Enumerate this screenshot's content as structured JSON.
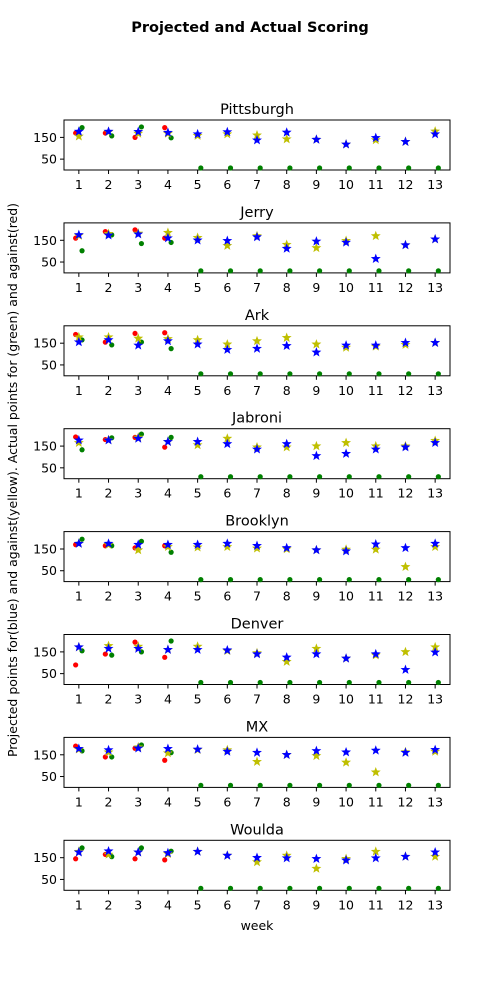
{
  "chart_data": {
    "type": "scatter",
    "title": "Projected and Actual Scoring",
    "xlabel": "week",
    "ylabel": "Projected points for(blue) and against(yellow). Actual points for (green) and against(red)",
    "x_ticks": [
      1,
      2,
      3,
      4,
      5,
      6,
      7,
      8,
      9,
      10,
      11,
      12,
      13
    ],
    "y_ticks": [
      150,
      50
    ],
    "ylim": [
      0,
      230
    ],
    "xlim": [
      0.5,
      13.5
    ],
    "series_styles": [
      {
        "key": "proj_for",
        "marker": "star",
        "color": "#0000ff"
      },
      {
        "key": "proj_against",
        "marker": "star",
        "color": "#bfbf00"
      },
      {
        "key": "act_for",
        "marker": "dot",
        "color": "#008000"
      },
      {
        "key": "act_against",
        "marker": "dot",
        "color": "#ff0000"
      }
    ],
    "panels": [
      {
        "name": "Pittsburgh",
        "proj_for": [
          177,
          177,
          176,
          172,
          165,
          175,
          137,
          173,
          140,
          118,
          148,
          130,
          165
        ],
        "proj_against": [
          155,
          175,
          168,
          168,
          158,
          165,
          160,
          142,
          140,
          118,
          138,
          130,
          178
        ],
        "act_for": [
          195,
          157,
          198,
          148,
          0,
          0,
          0,
          0,
          0,
          0,
          0,
          0,
          0
        ],
        "act_against": [
          170,
          170,
          150,
          195,
          null,
          null,
          null,
          null,
          null,
          null,
          null,
          null,
          null
        ]
      },
      {
        "name": "Jerry",
        "proj_for": [
          175,
          173,
          178,
          160,
          150,
          148,
          165,
          112,
          145,
          140,
          65,
          128,
          155
        ],
        "proj_against": [
          172,
          180,
          182,
          185,
          162,
          125,
          170,
          130,
          115,
          148,
          170,
          128,
          155
        ],
        "act_for": [
          102,
          175,
          135,
          140,
          0,
          0,
          0,
          0,
          0,
          0,
          0,
          0,
          0
        ],
        "act_against": [
          160,
          190,
          198,
          160,
          null,
          null,
          null,
          null,
          null,
          null,
          null,
          null,
          null
        ]
      },
      {
        "name": "Ark",
        "proj_for": [
          155,
          165,
          140,
          160,
          145,
          120,
          125,
          138,
          108,
          140,
          140,
          152,
          152
        ],
        "proj_against": [
          178,
          178,
          172,
          170,
          165,
          145,
          160,
          175,
          145,
          130,
          135,
          143,
          152
        ],
        "act_for": [
          165,
          142,
          155,
          125,
          0,
          0,
          0,
          0,
          0,
          0,
          0,
          0,
          0
        ],
        "act_against": [
          190,
          155,
          195,
          198,
          null,
          null,
          null,
          null,
          null,
          null,
          null,
          null,
          null
        ]
      },
      {
        "name": "Jabroni",
        "proj_for": [
          177,
          177,
          185,
          170,
          170,
          160,
          135,
          160,
          105,
          115,
          135,
          145,
          165
        ],
        "proj_against": [
          165,
          178,
          190,
          170,
          155,
          185,
          145,
          145,
          150,
          165,
          150,
          150,
          175
        ],
        "act_for": [
          133,
          188,
          205,
          190,
          0,
          0,
          0,
          0,
          0,
          0,
          0,
          0,
          0
        ],
        "act_against": [
          192,
          180,
          190,
          145,
          null,
          null,
          null,
          null,
          null,
          null,
          null,
          null,
          null
        ]
      },
      {
        "name": "Brooklyn",
        "proj_for": [
          175,
          175,
          170,
          170,
          170,
          175,
          165,
          155,
          145,
          140,
          172,
          155,
          175
        ],
        "proj_against": [
          175,
          170,
          145,
          160,
          158,
          160,
          153,
          150,
          145,
          148,
          148,
          68,
          160
        ],
        "act_for": [
          195,
          165,
          185,
          135,
          0,
          0,
          0,
          0,
          0,
          0,
          0,
          0,
          0
        ],
        "act_against": [
          170,
          165,
          155,
          165,
          null,
          null,
          null,
          null,
          null,
          null,
          null,
          null,
          null
        ]
      },
      {
        "name": "Denver",
        "proj_for": [
          172,
          165,
          165,
          160,
          160,
          158,
          140,
          125,
          140,
          120,
          140,
          68,
          148
        ],
        "proj_against": [
          172,
          178,
          175,
          160,
          175,
          155,
          145,
          105,
          165,
          120,
          135,
          150,
          172
        ],
        "act_for": [
          155,
          135,
          150,
          200,
          0,
          0,
          0,
          0,
          0,
          0,
          0,
          0,
          0
        ],
        "act_against": [
          90,
          140,
          195,
          125,
          null,
          null,
          null,
          null,
          null,
          null,
          null,
          null,
          null
        ]
      },
      {
        "name": "MX",
        "proj_for": [
          178,
          172,
          180,
          178,
          175,
          165,
          160,
          150,
          168,
          162,
          170,
          160,
          173
        ],
        "proj_against": [
          175,
          162,
          185,
          158,
          173,
          172,
          118,
          150,
          145,
          115,
          70,
          163,
          165
        ],
        "act_for": [
          168,
          140,
          195,
          160,
          0,
          0,
          0,
          0,
          0,
          0,
          0,
          0,
          0
        ],
        "act_against": [
          190,
          140,
          180,
          125,
          null,
          null,
          null,
          null,
          null,
          null,
          null,
          null,
          null
        ]
      },
      {
        "name": "Woulda",
        "proj_for": [
          175,
          180,
          175,
          172,
          178,
          160,
          150,
          148,
          145,
          138,
          148,
          155,
          175
        ],
        "proj_against": [
          178,
          165,
          175,
          168,
          178,
          160,
          130,
          160,
          100,
          145,
          178,
          155,
          155
        ],
        "act_for": [
          195,
          155,
          195,
          180,
          0,
          0,
          0,
          0,
          0,
          0,
          0,
          0,
          0
        ],
        "act_against": [
          145,
          165,
          145,
          140,
          null,
          null,
          null,
          null,
          null,
          null,
          null,
          null,
          null
        ]
      }
    ]
  }
}
